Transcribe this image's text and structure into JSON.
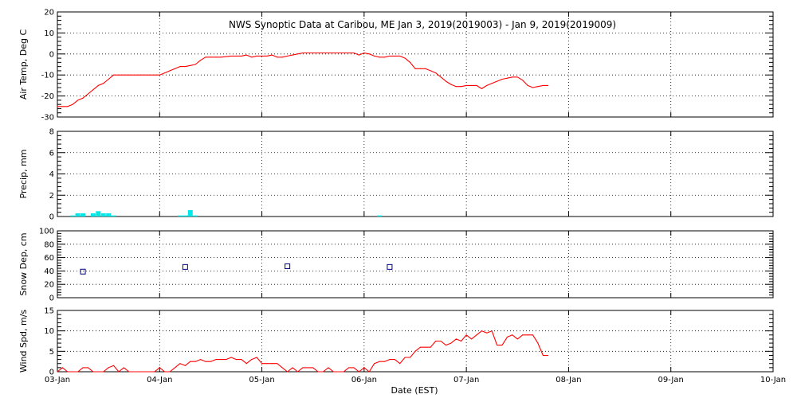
{
  "title": "NWS Synoptic Data at Caribou, ME   Jan  3, 2019(2019003) - Jan  9, 2019(2019009)",
  "chart_data": [
    {
      "type": "line",
      "id": "temp",
      "ylabel": "Air Temp, Deg C",
      "ylim": [
        -30,
        20
      ],
      "yticks": [
        -30,
        -20,
        -10,
        0,
        10,
        20
      ],
      "color": "#ff0000",
      "grid": true,
      "x": [
        0,
        0.05,
        0.1,
        0.15,
        0.2,
        0.25,
        0.3,
        0.35,
        0.4,
        0.45,
        0.5,
        0.55,
        0.6,
        0.7,
        0.8,
        0.9,
        1.0,
        1.05,
        1.1,
        1.15,
        1.2,
        1.25,
        1.3,
        1.35,
        1.4,
        1.45,
        1.5,
        1.55,
        1.6,
        1.7,
        1.8,
        1.85,
        1.9,
        1.95,
        2.0,
        2.05,
        2.1,
        2.15,
        2.2,
        2.25,
        2.3,
        2.35,
        2.4,
        2.45,
        2.5,
        2.55,
        2.6,
        2.7,
        2.8,
        2.9,
        2.95,
        3.0,
        3.05,
        3.1,
        3.15,
        3.2,
        3.25,
        3.3,
        3.35,
        3.4,
        3.45,
        3.5,
        3.55,
        3.6,
        3.65,
        3.7,
        3.75,
        3.8,
        3.85,
        3.9,
        3.95,
        4.0,
        4.05,
        4.1,
        4.15,
        4.2,
        4.25,
        4.3,
        4.35,
        4.4,
        4.45,
        4.5,
        4.55,
        4.6,
        4.65,
        4.7,
        4.75,
        4.8
      ],
      "y": [
        -25,
        -25,
        -25,
        -24,
        -22,
        -21,
        -19,
        -17,
        -15,
        -14,
        -12,
        -10,
        -10,
        -10,
        -10,
        -10,
        -10,
        -9,
        -8,
        -7,
        -6,
        -6,
        -5.5,
        -5,
        -3,
        -1.5,
        -1.5,
        -1.5,
        -1.5,
        -1,
        -1,
        -0.5,
        -1.5,
        -1,
        -1,
        -1,
        -0.5,
        -1.5,
        -1.5,
        -1,
        -0.5,
        0,
        0.5,
        0.5,
        0.5,
        0.5,
        0.5,
        0.5,
        0.5,
        0.5,
        -0.5,
        0.5,
        0,
        -1,
        -1.5,
        -1.5,
        -1,
        -1,
        -1,
        -2,
        -4,
        -7,
        -7,
        -7,
        -8,
        -9,
        -11,
        -13,
        -14.5,
        -15.5,
        -15.5,
        -15,
        -15,
        -15,
        -16.5,
        -15,
        -14,
        -13,
        -12,
        -11.5,
        -11,
        -11,
        -12.5,
        -15,
        -16,
        -15.5,
        -15,
        -15
      ]
    },
    {
      "type": "bar",
      "id": "precip",
      "ylabel": "Precip, mm",
      "ylim": [
        0,
        8
      ],
      "yticks": [
        0,
        2,
        4,
        6,
        8
      ],
      "color": "#00e8e8",
      "grid": true,
      "x": [
        0.15,
        0.2,
        0.25,
        0.35,
        0.4,
        0.45,
        0.5,
        0.55,
        1.2,
        1.25,
        1.3,
        1.35,
        3.15
      ],
      "values": [
        0.1,
        0.3,
        0.3,
        0.3,
        0.5,
        0.3,
        0.3,
        0.1,
        0.1,
        0.1,
        0.6,
        0.1,
        0.1
      ]
    },
    {
      "type": "scatter",
      "id": "snow",
      "ylabel": "Snow Dep, cm",
      "ylim": [
        0,
        100
      ],
      "yticks": [
        0,
        20,
        40,
        60,
        80,
        100
      ],
      "color": "#000080",
      "grid": true,
      "x": [
        0.25,
        1.25,
        2.25,
        3.25
      ],
      "y": [
        39,
        46,
        47,
        46
      ]
    },
    {
      "type": "line",
      "id": "wind",
      "ylabel": "Wind Spd, m/s",
      "xlabel": "Date (EST)",
      "ylim": [
        0,
        15
      ],
      "yticks": [
        0,
        5,
        10,
        15
      ],
      "color": "#ff0000",
      "grid": true,
      "x": [
        0,
        0.05,
        0.1,
        0.15,
        0.2,
        0.25,
        0.3,
        0.35,
        0.4,
        0.45,
        0.5,
        0.55,
        0.6,
        0.65,
        0.7,
        0.75,
        0.8,
        0.85,
        0.9,
        0.95,
        1.0,
        1.05,
        1.1,
        1.15,
        1.2,
        1.25,
        1.3,
        1.35,
        1.4,
        1.45,
        1.5,
        1.55,
        1.6,
        1.65,
        1.7,
        1.75,
        1.8,
        1.85,
        1.9,
        1.95,
        2.0,
        2.05,
        2.1,
        2.15,
        2.2,
        2.25,
        2.3,
        2.35,
        2.4,
        2.45,
        2.5,
        2.55,
        2.6,
        2.65,
        2.7,
        2.75,
        2.8,
        2.85,
        2.9,
        2.95,
        3.0,
        3.05,
        3.1,
        3.15,
        3.2,
        3.25,
        3.3,
        3.35,
        3.4,
        3.45,
        3.5,
        3.55,
        3.6,
        3.65,
        3.7,
        3.75,
        3.8,
        3.85,
        3.9,
        3.95,
        4.0,
        4.05,
        4.1,
        4.15,
        4.2,
        4.25,
        4.3,
        4.35,
        4.4,
        4.45,
        4.5,
        4.55,
        4.6,
        4.65,
        4.7,
        4.75,
        4.8
      ],
      "y": [
        0,
        1,
        0,
        0,
        0,
        1,
        1,
        0,
        0,
        0,
        1,
        1.5,
        0,
        1,
        0,
        0,
        0,
        0,
        0,
        0,
        1,
        0,
        0,
        1,
        2,
        1.5,
        2.5,
        2.5,
        3,
        2.5,
        2.5,
        3,
        3,
        3,
        3.5,
        3,
        3,
        2,
        3,
        3.5,
        2,
        2,
        2,
        2,
        1,
        0,
        1,
        0,
        1,
        1,
        1,
        0,
        0,
        1,
        0,
        0,
        0,
        1,
        1,
        0,
        1,
        0,
        2,
        2.5,
        2.5,
        3,
        3,
        2,
        3.5,
        3.5,
        5,
        6,
        6,
        6,
        7.5,
        7.5,
        6.5,
        7,
        8,
        7.5,
        9,
        8,
        9,
        10,
        9.5,
        10,
        6.5,
        6.5,
        8.5,
        9,
        8,
        9,
        9,
        9,
        7,
        4,
        4
      ]
    }
  ],
  "x_axis": {
    "ticks": [
      0,
      1,
      2,
      3,
      4,
      5,
      6,
      7
    ],
    "tick_labels": [
      "03-Jan",
      "04-Jan",
      "05-Jan",
      "06-Jan",
      "07-Jan",
      "08-Jan",
      "09-Jan",
      "10-Jan"
    ],
    "xlim": [
      0,
      7
    ],
    "xlabel": "Date (EST)"
  }
}
